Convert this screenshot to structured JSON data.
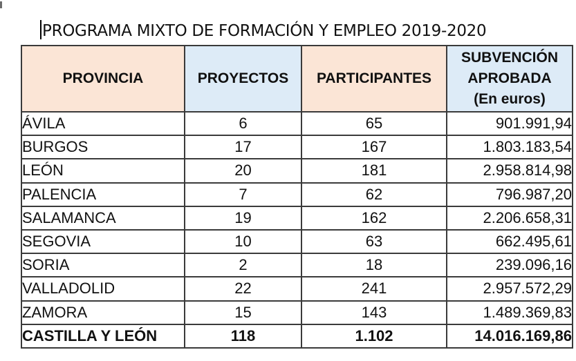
{
  "title": "PROGRAMA MIXTO DE FORMACIÓN Y EMPLEO 2019-2020",
  "colors": {
    "header_peach": "#fbe5d6",
    "header_blue": "#ddebf7",
    "border": "#3a3a3a"
  },
  "headers": {
    "provincia": "PROVINCIA",
    "proyectos": "PROYECTOS",
    "participantes": "PARTICIPANTES",
    "subvencion_line1": "SUBVENCIÓN",
    "subvencion_line2": "APROBADA",
    "subvencion_line3": "(En euros)"
  },
  "rows": [
    {
      "provincia": "ÁVILA",
      "proyectos": "6",
      "participantes": "65",
      "subvencion": "901.991,94"
    },
    {
      "provincia": "BURGOS",
      "proyectos": "17",
      "participantes": "167",
      "subvencion": "1.803.183,54"
    },
    {
      "provincia": "LEÓN",
      "proyectos": "20",
      "participantes": "181",
      "subvencion": "2.958.814,98"
    },
    {
      "provincia": "PALENCIA",
      "proyectos": "7",
      "participantes": "62",
      "subvencion": "796.987,20"
    },
    {
      "provincia": "SALAMANCA",
      "proyectos": "19",
      "participantes": "162",
      "subvencion": "2.206.658,31"
    },
    {
      "provincia": "SEGOVIA",
      "proyectos": "10",
      "participantes": "63",
      "subvencion": "662.495,61"
    },
    {
      "provincia": "SORIA",
      "proyectos": "2",
      "participantes": "18",
      "subvencion": "239.096,16"
    },
    {
      "provincia": "VALLADOLID",
      "proyectos": "22",
      "participantes": "241",
      "subvencion": "2.957.572,29"
    },
    {
      "provincia": "ZAMORA",
      "proyectos": "15",
      "participantes": "143",
      "subvencion": "1.489.369,83"
    }
  ],
  "total": {
    "provincia": "CASTILLA Y LEÓN",
    "proyectos": "118",
    "participantes": "1.102",
    "subvencion": "14.016.169,86"
  }
}
